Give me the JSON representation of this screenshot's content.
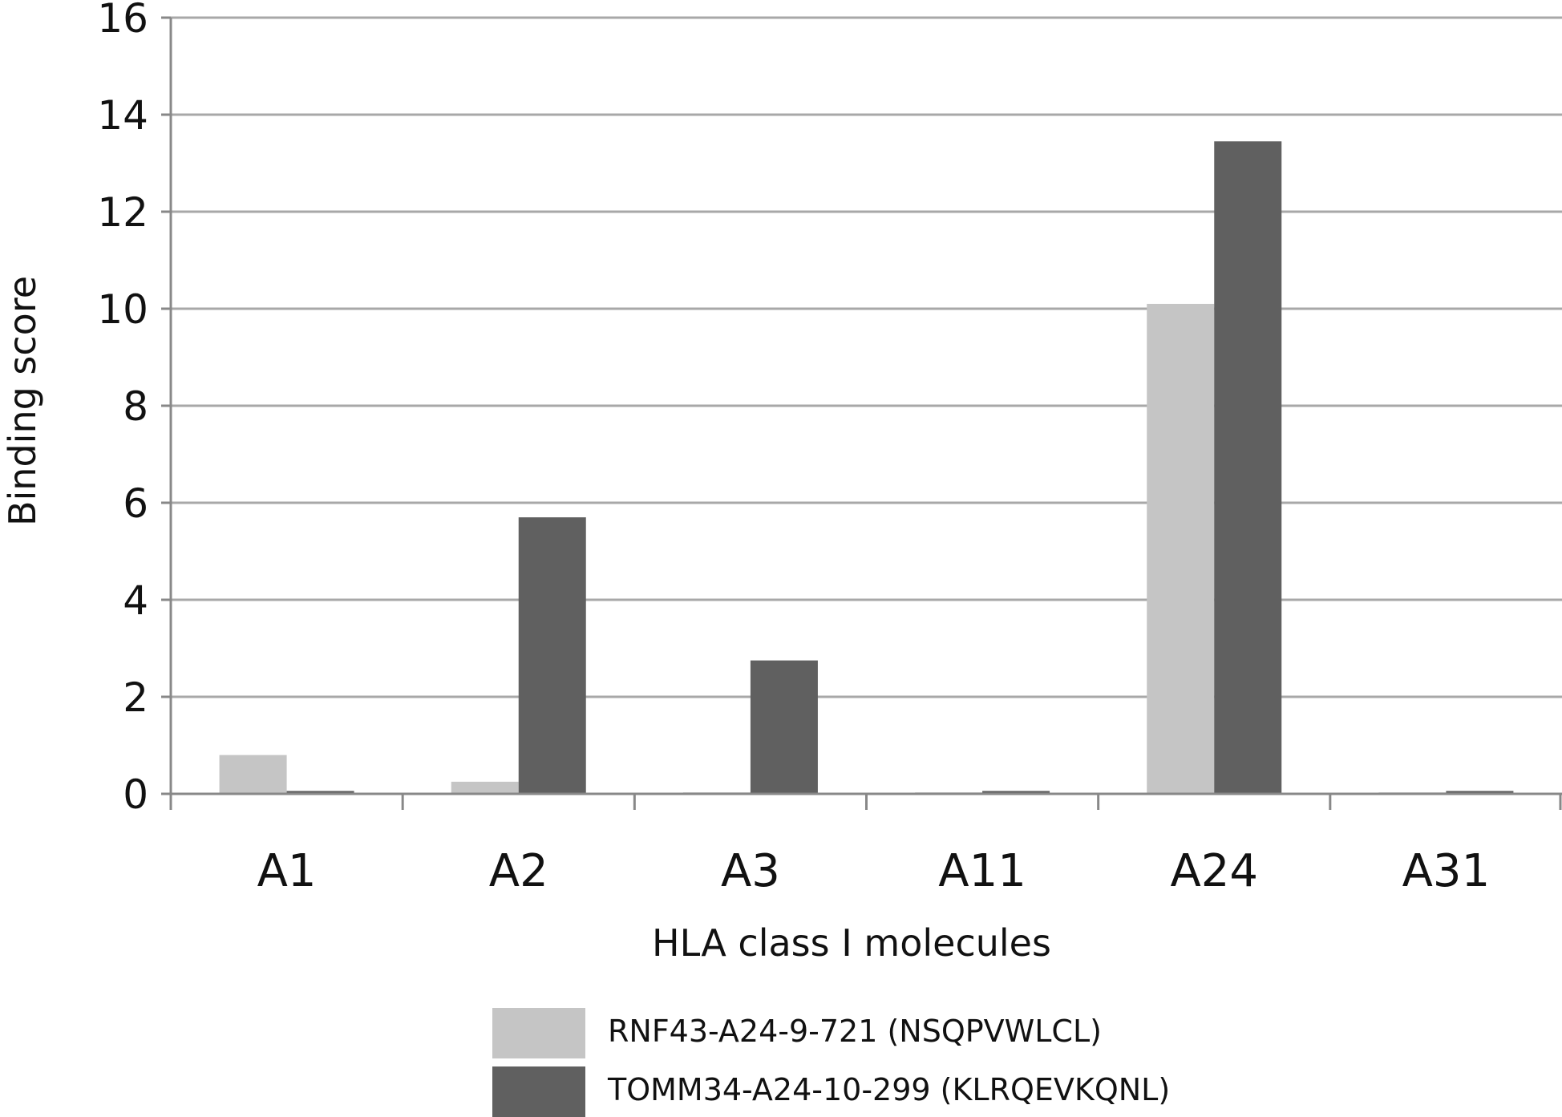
{
  "chart_data": {
    "type": "bar",
    "title": "",
    "xlabel": "HLA class I molecules",
    "ylabel": "Binding score",
    "categories": [
      "A1",
      "A2",
      "A3",
      "A11",
      "A24",
      "A31"
    ],
    "series": [
      {
        "name": "RNF43-A24-9-721 (NSQPVWLCL)",
        "values": [
          0.8,
          0.25,
          0.03,
          0.03,
          10.1,
          0.03
        ],
        "color": "#c5c5c5"
      },
      {
        "name": "TOMM34-A24-10-299 (KLRQEVKQNL)",
        "values": [
          0.06,
          5.7,
          2.75,
          0.06,
          13.45,
          0.06
        ],
        "color": "#606060"
      }
    ],
    "yticks": [
      "0",
      "2",
      "4",
      "6",
      "8",
      "10",
      "12",
      "14",
      "16"
    ],
    "ylim": [
      0,
      16
    ],
    "grid": true,
    "legend_position": "bottom"
  }
}
